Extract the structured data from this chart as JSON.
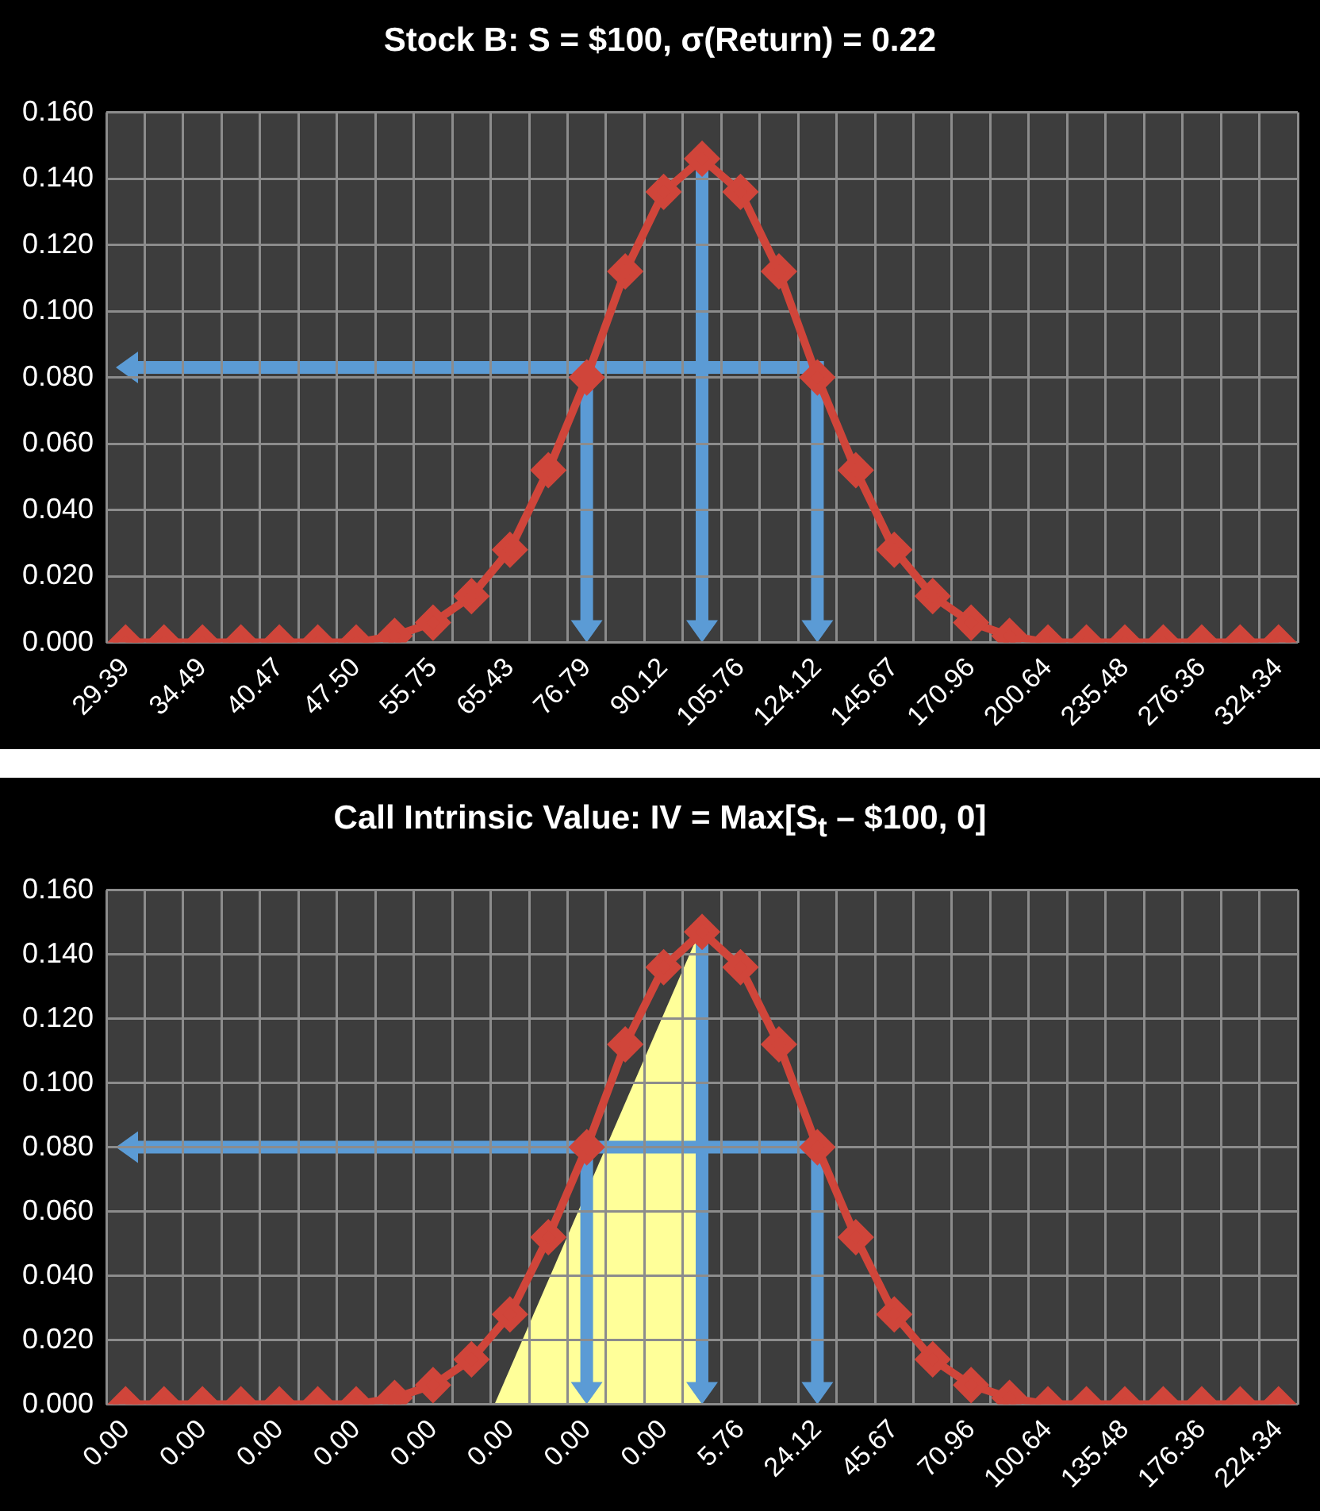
{
  "chart_data": [
    {
      "type": "line",
      "title": "Stock B: S = $100, σ(Return) =  0.22",
      "categories": [
        "29.39",
        null,
        "34.49",
        null,
        "40.47",
        null,
        "47.50",
        null,
        "55.75",
        null,
        "65.43",
        null,
        "76.79",
        null,
        "90.12",
        null,
        "105.76",
        null,
        "124.12",
        null,
        "145.67",
        null,
        "170.96",
        null,
        "200.64",
        null,
        "235.48",
        null,
        "276.36",
        null,
        "324.34"
      ],
      "values": [
        0,
        0,
        0,
        0,
        0,
        0,
        0,
        0.002,
        0.006,
        0.014,
        0.028,
        0.052,
        0.08,
        0.112,
        0.136,
        0.146,
        0.136,
        0.112,
        0.08,
        0.052,
        0.028,
        0.014,
        0.006,
        0.002,
        0,
        0,
        0,
        0,
        0,
        0,
        0
      ],
      "color": "#d0453a",
      "marker": "diamond",
      "grid": true,
      "ylim": [
        0,
        0.16
      ],
      "yticks": [
        {
          "value": 0,
          "label": "0.000"
        },
        {
          "value": 0.02,
          "label": "0.020"
        },
        {
          "value": 0.04,
          "label": "0.040"
        },
        {
          "value": 0.06,
          "label": "0.060"
        },
        {
          "value": 0.08,
          "label": "0.080"
        },
        {
          "value": 0.1,
          "label": "0.100"
        },
        {
          "value": 0.12,
          "label": "0.120"
        },
        {
          "value": 0.14,
          "label": "0.140"
        },
        {
          "value": 0.16,
          "label": "0.160"
        }
      ]
    },
    {
      "type": "line",
      "title": "Call Intrinsic Value: IV = Max[S$_{t}$ – $100, 0]",
      "categories": [
        "0.00",
        null,
        "0.00",
        null,
        "0.00",
        null,
        "0.00",
        null,
        "0.00",
        null,
        "0.00",
        null,
        "0.00",
        null,
        "0.00",
        null,
        "5.76",
        null,
        "24.12",
        null,
        "45.67",
        null,
        "70.96",
        null,
        "100.64",
        null,
        "135.48",
        null,
        "176.36",
        null,
        "224.34"
      ],
      "values": [
        0,
        0,
        0,
        0,
        0,
        0,
        0,
        0.002,
        0.006,
        0.014,
        0.028,
        0.052,
        0.08,
        0.112,
        0.136,
        0.147,
        0.136,
        0.112,
        0.08,
        0.052,
        0.028,
        0.014,
        0.006,
        0.002,
        0,
        0,
        0,
        0,
        0,
        0,
        0
      ],
      "color": "#d0453a",
      "marker": "diamond",
      "grid": true,
      "ylim": [
        0,
        0.16
      ],
      "yticks": [
        {
          "value": 0,
          "label": "0.000"
        },
        {
          "value": 0.02,
          "label": "0.020"
        },
        {
          "value": 0.04,
          "label": "0.040"
        },
        {
          "value": 0.06,
          "label": "0.060"
        },
        {
          "value": 0.08,
          "label": "0.080"
        },
        {
          "value": 0.1,
          "label": "0.100"
        },
        {
          "value": 0.12,
          "label": "0.120"
        },
        {
          "value": 0.14,
          "label": "0.140"
        },
        {
          "value": 0.16,
          "label": "0.160"
        }
      ]
    }
  ]
}
